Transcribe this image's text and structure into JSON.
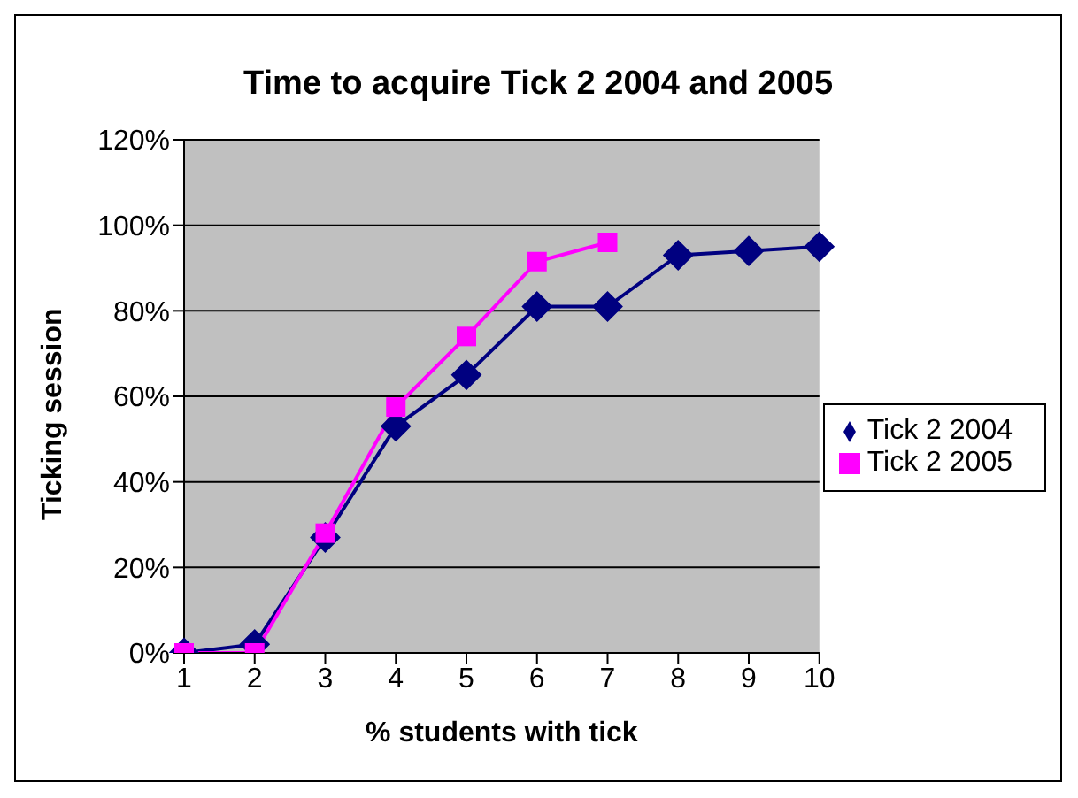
{
  "chart_data": {
    "type": "line",
    "title": "Time to acquire Tick 2 2004 and 2005",
    "xlabel": "% students with tick",
    "ylabel": "Ticking session",
    "categories": [
      "1",
      "2",
      "3",
      "4",
      "5",
      "6",
      "7",
      "8",
      "9",
      "10"
    ],
    "series": [
      {
        "name": "Tick 2 2004",
        "color": "#000080",
        "marker": "diamond",
        "values": [
          0,
          2,
          27,
          53,
          65,
          81,
          81,
          93,
          94,
          95
        ]
      },
      {
        "name": "Tick 2 2005",
        "color": "#ff00ff",
        "marker": "square",
        "values": [
          0,
          0,
          28,
          57.5,
          74,
          91.5,
          96,
          null,
          null,
          null
        ]
      }
    ],
    "ylim": [
      0,
      120
    ],
    "yticks": [
      {
        "value": 0,
        "label": "0%"
      },
      {
        "value": 20,
        "label": "20%"
      },
      {
        "value": 40,
        "label": "40%"
      },
      {
        "value": 60,
        "label": "60%"
      },
      {
        "value": 80,
        "label": "80%"
      },
      {
        "value": 100,
        "label": "100%"
      },
      {
        "value": 120,
        "label": "120%"
      }
    ],
    "grid": "y",
    "legend": "right",
    "line_style": "solid"
  }
}
